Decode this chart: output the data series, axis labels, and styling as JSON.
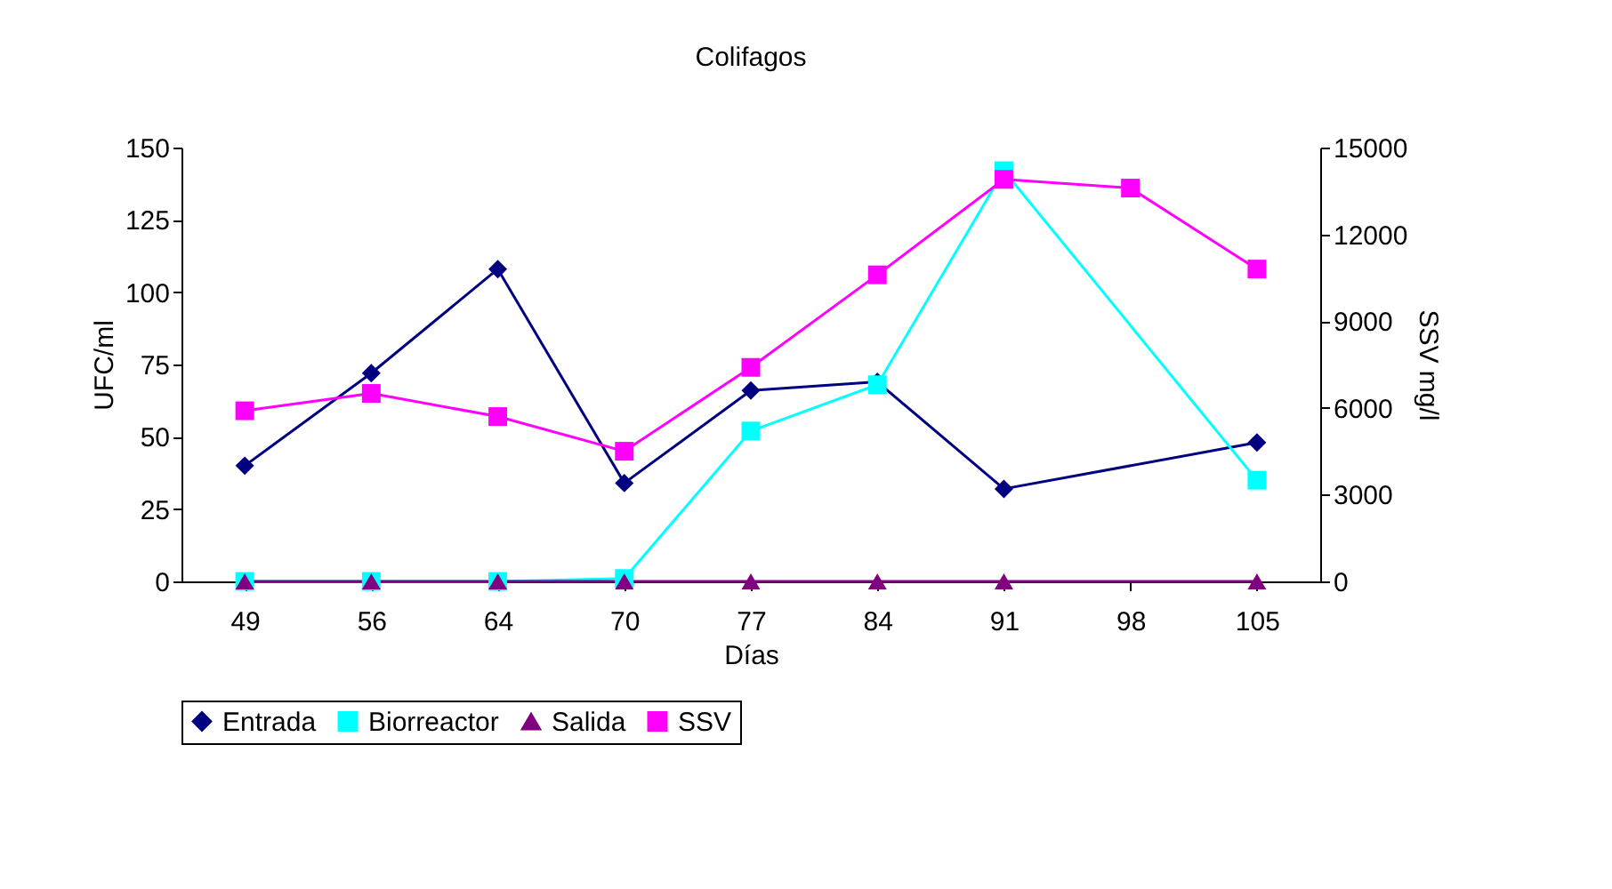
{
  "chart_data": {
    "type": "line",
    "title": "Colifagos",
    "xlabel": "Días",
    "ylabel": "UFC/ml",
    "y2label": "SSV mg/l",
    "categories": [
      "49",
      "56",
      "64",
      "70",
      "77",
      "84",
      "91",
      "98",
      "105"
    ],
    "ylim": [
      0,
      150
    ],
    "yticks": [
      0,
      25,
      50,
      75,
      100,
      125,
      150
    ],
    "y2lim": [
      0,
      15000
    ],
    "y2ticks": [
      0,
      3000,
      6000,
      9000,
      12000,
      15000
    ],
    "legend": "bottom",
    "series": [
      {
        "name": "Entrada",
        "color": "#000080",
        "marker": "diamond",
        "values": [
          40,
          72,
          108,
          34,
          66,
          69,
          32,
          null,
          48
        ]
      },
      {
        "name": "Biorreactor",
        "color": "#00ffff",
        "marker": "square",
        "values": [
          0,
          0,
          0,
          1,
          52,
          68,
          142,
          null,
          35
        ]
      },
      {
        "name": "Salida",
        "color": "#800080",
        "marker": "triangle",
        "values": [
          0,
          0,
          0,
          0,
          0,
          0,
          0,
          null,
          0
        ]
      },
      {
        "name": "SSV",
        "color": "#ff00ff",
        "marker": "square",
        "axis": "y2",
        "values": [
          5900,
          6500,
          5700,
          4500,
          7400,
          10600,
          13900,
          13600,
          10800
        ]
      }
    ]
  }
}
